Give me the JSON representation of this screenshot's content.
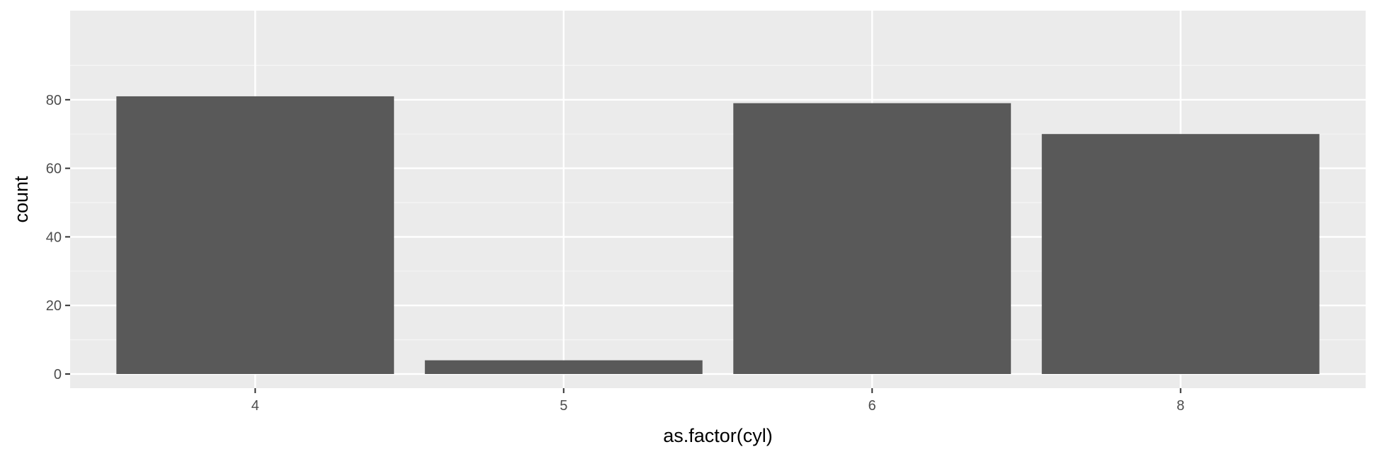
{
  "chart_data": {
    "type": "bar",
    "title": "",
    "xlabel": "as.factor(cyl)",
    "ylabel": "count",
    "categories": [
      "4",
      "5",
      "6",
      "8"
    ],
    "values": [
      81,
      4,
      79,
      70
    ],
    "ylim": [
      0,
      85
    ],
    "y_ticks": [
      0,
      20,
      40,
      60,
      80
    ],
    "grid": true,
    "legend": "none",
    "colors": {
      "panel_background": "#ebebeb",
      "grid_major": "#ffffff",
      "grid_minor": "#f5f5f5",
      "bar_fill": "#595959",
      "tick_text": "#4d4d4d",
      "axis_title": "#000000"
    }
  }
}
